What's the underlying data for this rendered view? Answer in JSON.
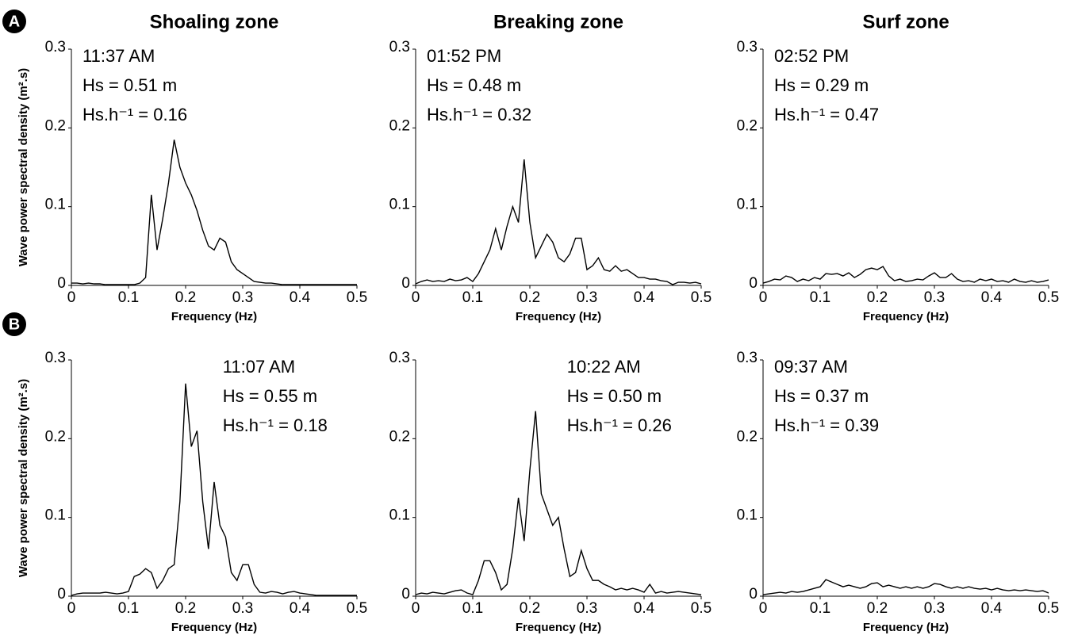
{
  "panel_labels": [
    "A",
    "B"
  ],
  "chart_data": [
    {
      "type": "line",
      "title": "Shoaling zone",
      "xlabel": "Frequency (Hz)",
      "ylabel": "Wave power spectral density (m².s)",
      "annotations": [
        "11:37 AM",
        "Hs = 0.51 m",
        "Hs.h⁻¹ = 0.16"
      ],
      "annotation_corner": "upper left",
      "color": "#000000",
      "xlim": [
        0,
        0.5
      ],
      "ylim": [
        0,
        0.3
      ],
      "xticks": [
        0,
        0.1,
        0.2,
        0.3,
        0.4,
        0.5
      ],
      "yticks": [
        0,
        0.1,
        0.2,
        0.3
      ],
      "x": [
        0,
        0.01,
        0.02,
        0.03,
        0.04,
        0.05,
        0.06,
        0.07,
        0.08,
        0.09,
        0.1,
        0.11,
        0.12,
        0.13,
        0.14,
        0.15,
        0.16,
        0.17,
        0.18,
        0.19,
        0.2,
        0.21,
        0.22,
        0.23,
        0.24,
        0.25,
        0.26,
        0.27,
        0.28,
        0.29,
        0.3,
        0.31,
        0.32,
        0.33,
        0.34,
        0.35,
        0.36,
        0.37,
        0.38,
        0.39,
        0.4,
        0.41,
        0.42,
        0.43,
        0.44,
        0.45,
        0.46,
        0.47,
        0.48,
        0.49,
        0.5
      ],
      "values": [
        0.003,
        0.003,
        0.002,
        0.003,
        0.002,
        0.002,
        0.001,
        0.001,
        0.001,
        0.001,
        0.001,
        0.001,
        0.003,
        0.01,
        0.115,
        0.045,
        0.085,
        0.13,
        0.185,
        0.15,
        0.13,
        0.115,
        0.095,
        0.07,
        0.05,
        0.045,
        0.06,
        0.055,
        0.03,
        0.02,
        0.015,
        0.01,
        0.005,
        0.004,
        0.003,
        0.003,
        0.002,
        0.001,
        0.001,
        0.001,
        0.001,
        0.001,
        0.001,
        0.001,
        0.001,
        0.001,
        0.001,
        0.001,
        0.001,
        0.001,
        0.001
      ]
    },
    {
      "type": "line",
      "title": "Breaking zone",
      "xlabel": "Frequency (Hz)",
      "annotations": [
        "01:52 PM",
        "Hs = 0.48 m",
        "Hs.h⁻¹ = 0.32"
      ],
      "annotation_corner": "upper left",
      "color": "#000000",
      "xlim": [
        0,
        0.5
      ],
      "ylim": [
        0,
        0.3
      ],
      "xticks": [
        0,
        0.1,
        0.2,
        0.3,
        0.4,
        0.5
      ],
      "yticks": [
        0,
        0.1,
        0.2,
        0.3
      ],
      "x": [
        0,
        0.01,
        0.02,
        0.03,
        0.04,
        0.05,
        0.06,
        0.07,
        0.08,
        0.09,
        0.1,
        0.11,
        0.12,
        0.13,
        0.14,
        0.15,
        0.16,
        0.17,
        0.18,
        0.19,
        0.2,
        0.21,
        0.22,
        0.23,
        0.24,
        0.25,
        0.26,
        0.27,
        0.28,
        0.29,
        0.3,
        0.31,
        0.32,
        0.33,
        0.34,
        0.35,
        0.36,
        0.37,
        0.38,
        0.39,
        0.4,
        0.41,
        0.42,
        0.43,
        0.44,
        0.45,
        0.46,
        0.47,
        0.48,
        0.49,
        0.5
      ],
      "values": [
        0.002,
        0.005,
        0.007,
        0.005,
        0.006,
        0.005,
        0.008,
        0.006,
        0.007,
        0.01,
        0.005,
        0.015,
        0.03,
        0.045,
        0.072,
        0.045,
        0.075,
        0.1,
        0.08,
        0.16,
        0.08,
        0.035,
        0.05,
        0.065,
        0.055,
        0.035,
        0.03,
        0.04,
        0.06,
        0.06,
        0.02,
        0.025,
        0.035,
        0.02,
        0.018,
        0.025,
        0.018,
        0.02,
        0.015,
        0.01,
        0.01,
        0.008,
        0.008,
        0.006,
        0.005,
        0.001,
        0.004,
        0.004,
        0.003,
        0.004,
        0.002
      ]
    },
    {
      "type": "line",
      "title": "Surf zone",
      "xlabel": "Frequency (Hz)",
      "annotations": [
        "02:52 PM",
        "Hs = 0.29 m",
        "Hs.h⁻¹ = 0.47"
      ],
      "annotation_corner": "upper left",
      "color": "#000000",
      "xlim": [
        0,
        0.5
      ],
      "ylim": [
        0,
        0.3
      ],
      "xticks": [
        0,
        0.1,
        0.2,
        0.3,
        0.4,
        0.5
      ],
      "yticks": [
        0,
        0.1,
        0.2,
        0.3
      ],
      "x": [
        0,
        0.01,
        0.02,
        0.03,
        0.04,
        0.05,
        0.06,
        0.07,
        0.08,
        0.09,
        0.1,
        0.11,
        0.12,
        0.13,
        0.14,
        0.15,
        0.16,
        0.17,
        0.18,
        0.19,
        0.2,
        0.21,
        0.22,
        0.23,
        0.24,
        0.25,
        0.26,
        0.27,
        0.28,
        0.29,
        0.3,
        0.31,
        0.32,
        0.33,
        0.34,
        0.35,
        0.36,
        0.37,
        0.38,
        0.39,
        0.4,
        0.41,
        0.42,
        0.43,
        0.44,
        0.45,
        0.46,
        0.47,
        0.48,
        0.49,
        0.5
      ],
      "values": [
        0.003,
        0.005,
        0.008,
        0.007,
        0.012,
        0.01,
        0.005,
        0.008,
        0.006,
        0.01,
        0.008,
        0.015,
        0.014,
        0.015,
        0.012,
        0.016,
        0.01,
        0.014,
        0.02,
        0.022,
        0.02,
        0.024,
        0.012,
        0.006,
        0.008,
        0.005,
        0.006,
        0.008,
        0.007,
        0.012,
        0.016,
        0.01,
        0.01,
        0.015,
        0.008,
        0.005,
        0.006,
        0.004,
        0.008,
        0.006,
        0.008,
        0.005,
        0.006,
        0.004,
        0.008,
        0.005,
        0.004,
        0.006,
        0.004,
        0.005,
        0.007
      ]
    },
    {
      "type": "line",
      "xlabel": "Frequency (Hz)",
      "ylabel": "Wave power spectral density (m².s)",
      "annotations": [
        "11:07 AM",
        "Hs = 0.55 m",
        "Hs.h⁻¹ = 0.18"
      ],
      "annotation_corner": "upper right",
      "color": "#000000",
      "xlim": [
        0,
        0.5
      ],
      "ylim": [
        0,
        0.3
      ],
      "xticks": [
        0,
        0.1,
        0.2,
        0.3,
        0.4,
        0.5
      ],
      "yticks": [
        0,
        0.1,
        0.2,
        0.3
      ],
      "x": [
        0,
        0.01,
        0.02,
        0.03,
        0.04,
        0.05,
        0.06,
        0.07,
        0.08,
        0.09,
        0.1,
        0.11,
        0.12,
        0.13,
        0.14,
        0.15,
        0.16,
        0.17,
        0.18,
        0.19,
        0.2,
        0.21,
        0.22,
        0.23,
        0.24,
        0.25,
        0.26,
        0.27,
        0.28,
        0.29,
        0.3,
        0.31,
        0.32,
        0.33,
        0.34,
        0.35,
        0.36,
        0.37,
        0.38,
        0.39,
        0.4,
        0.41,
        0.42,
        0.43,
        0.44,
        0.45,
        0.46,
        0.47,
        0.48,
        0.49,
        0.5
      ],
      "values": [
        0.001,
        0.003,
        0.004,
        0.004,
        0.004,
        0.004,
        0.005,
        0.004,
        0.003,
        0.004,
        0.006,
        0.025,
        0.028,
        0.035,
        0.03,
        0.01,
        0.02,
        0.035,
        0.04,
        0.12,
        0.27,
        0.19,
        0.21,
        0.12,
        0.06,
        0.145,
        0.09,
        0.075,
        0.03,
        0.02,
        0.04,
        0.04,
        0.015,
        0.005,
        0.004,
        0.006,
        0.005,
        0.003,
        0.005,
        0.006,
        0.004,
        0.003,
        0.002,
        0.001,
        0.001,
        0.001,
        0.001,
        0.001,
        0.001,
        0.001,
        0.001
      ]
    },
    {
      "type": "line",
      "xlabel": "Frequency (Hz)",
      "annotations": [
        "10:22 AM",
        "Hs = 0.50 m",
        "Hs.h⁻¹ = 0.26"
      ],
      "annotation_corner": "upper right",
      "color": "#000000",
      "xlim": [
        0,
        0.5
      ],
      "ylim": [
        0,
        0.3
      ],
      "xticks": [
        0,
        0.1,
        0.2,
        0.3,
        0.4,
        0.5
      ],
      "yticks": [
        0,
        0.1,
        0.2,
        0.3
      ],
      "x": [
        0,
        0.01,
        0.02,
        0.03,
        0.04,
        0.05,
        0.06,
        0.07,
        0.08,
        0.09,
        0.1,
        0.11,
        0.12,
        0.13,
        0.14,
        0.15,
        0.16,
        0.17,
        0.18,
        0.19,
        0.2,
        0.21,
        0.22,
        0.23,
        0.24,
        0.25,
        0.26,
        0.27,
        0.28,
        0.29,
        0.3,
        0.31,
        0.32,
        0.33,
        0.34,
        0.35,
        0.36,
        0.37,
        0.38,
        0.39,
        0.4,
        0.41,
        0.42,
        0.43,
        0.44,
        0.45,
        0.46,
        0.47,
        0.48,
        0.49,
        0.5
      ],
      "values": [
        0.002,
        0.004,
        0.003,
        0.005,
        0.004,
        0.003,
        0.005,
        0.007,
        0.008,
        0.004,
        0.002,
        0.02,
        0.045,
        0.045,
        0.03,
        0.008,
        0.015,
        0.06,
        0.125,
        0.07,
        0.16,
        0.235,
        0.13,
        0.11,
        0.09,
        0.1,
        0.06,
        0.025,
        0.03,
        0.058,
        0.035,
        0.02,
        0.02,
        0.015,
        0.012,
        0.008,
        0.01,
        0.008,
        0.01,
        0.008,
        0.005,
        0.015,
        0.004,
        0.006,
        0.004,
        0.005,
        0.006,
        0.005,
        0.004,
        0.003,
        0.002
      ]
    },
    {
      "type": "line",
      "xlabel": "Frequency (Hz)",
      "annotations": [
        "09:37 AM",
        "Hs = 0.37 m",
        "Hs.h⁻¹ = 0.39"
      ],
      "annotation_corner": "upper left",
      "color": "#000000",
      "xlim": [
        0,
        0.5
      ],
      "ylim": [
        0,
        0.3
      ],
      "xticks": [
        0,
        0.1,
        0.2,
        0.3,
        0.4,
        0.5
      ],
      "yticks": [
        0,
        0.1,
        0.2,
        0.3
      ],
      "x": [
        0,
        0.01,
        0.02,
        0.03,
        0.04,
        0.05,
        0.06,
        0.07,
        0.08,
        0.09,
        0.1,
        0.11,
        0.12,
        0.13,
        0.14,
        0.15,
        0.16,
        0.17,
        0.18,
        0.19,
        0.2,
        0.21,
        0.22,
        0.23,
        0.24,
        0.25,
        0.26,
        0.27,
        0.28,
        0.29,
        0.3,
        0.31,
        0.32,
        0.33,
        0.34,
        0.35,
        0.36,
        0.37,
        0.38,
        0.39,
        0.4,
        0.41,
        0.42,
        0.43,
        0.44,
        0.45,
        0.46,
        0.47,
        0.48,
        0.49,
        0.5
      ],
      "values": [
        0.002,
        0.003,
        0.004,
        0.005,
        0.004,
        0.006,
        0.005,
        0.006,
        0.008,
        0.01,
        0.012,
        0.021,
        0.018,
        0.015,
        0.012,
        0.014,
        0.012,
        0.01,
        0.012,
        0.016,
        0.017,
        0.012,
        0.014,
        0.012,
        0.01,
        0.012,
        0.01,
        0.012,
        0.01,
        0.012,
        0.016,
        0.015,
        0.012,
        0.01,
        0.012,
        0.01,
        0.012,
        0.01,
        0.009,
        0.01,
        0.008,
        0.01,
        0.008,
        0.007,
        0.008,
        0.007,
        0.008,
        0.007,
        0.006,
        0.007,
        0.004
      ]
    }
  ]
}
